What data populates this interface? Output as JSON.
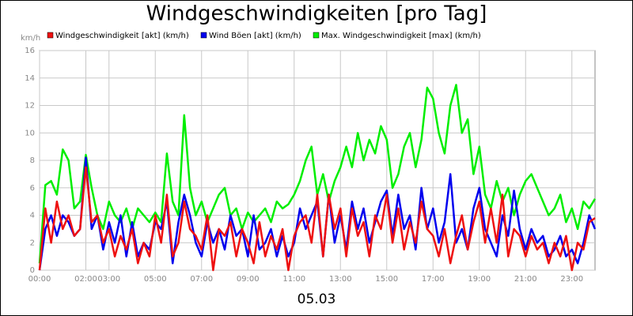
{
  "chart_data": {
    "type": "line",
    "title": "Windgeschwindigkeiten [pro Tag]",
    "x_label": "05.03",
    "y_unit": "km/h",
    "x": [
      0,
      0.25,
      0.5,
      0.75,
      1,
      1.25,
      1.5,
      1.75,
      2,
      2.25,
      2.5,
      2.75,
      3,
      3.25,
      3.5,
      3.75,
      4,
      4.25,
      4.5,
      4.75,
      5,
      5.25,
      5.5,
      5.75,
      6,
      6.25,
      6.5,
      6.75,
      7,
      7.25,
      7.5,
      7.75,
      8,
      8.25,
      8.5,
      8.75,
      9,
      9.25,
      9.5,
      9.75,
      10,
      10.25,
      10.5,
      10.75,
      11,
      11.25,
      11.5,
      11.75,
      12,
      12.25,
      12.5,
      12.75,
      13,
      13.25,
      13.5,
      13.75,
      14,
      14.25,
      14.5,
      14.75,
      15,
      15.25,
      15.5,
      15.75,
      16,
      16.25,
      16.5,
      16.75,
      17,
      17.25,
      17.5,
      17.75,
      18,
      18.25,
      18.5,
      18.75,
      19,
      19.25,
      19.5,
      19.75,
      20,
      20.25,
      20.5,
      20.75,
      21,
      21.25,
      21.5,
      21.75,
      22,
      22.25,
      22.5,
      22.75,
      23,
      23.25,
      23.5,
      23.75,
      24
    ],
    "series": [
      {
        "name": "Windgeschwindigkeit [akt] (km/h)",
        "color": "#ee1111",
        "values": [
          0.0,
          4.5,
          2.0,
          5.0,
          3.0,
          4.0,
          2.5,
          3.0,
          7.5,
          3.5,
          4.0,
          2.0,
          3.0,
          1.0,
          2.5,
          1.5,
          3.0,
          0.5,
          2.0,
          1.0,
          4.0,
          2.0,
          5.5,
          1.0,
          2.0,
          5.0,
          3.0,
          2.5,
          1.5,
          4.0,
          0.0,
          3.0,
          2.5,
          3.5,
          1.0,
          3.0,
          2.0,
          0.5,
          3.5,
          1.0,
          2.5,
          1.5,
          3.0,
          0.0,
          2.5,
          3.5,
          4.0,
          2.0,
          5.5,
          1.0,
          5.5,
          3.0,
          4.5,
          1.0,
          4.5,
          2.5,
          3.5,
          1.0,
          4.0,
          3.0,
          5.5,
          2.0,
          4.5,
          1.5,
          3.5,
          2.0,
          5.0,
          3.0,
          2.5,
          1.0,
          3.0,
          0.5,
          2.5,
          4.0,
          1.5,
          3.5,
          5.0,
          2.0,
          4.5,
          2.0,
          5.5,
          1.0,
          3.0,
          2.5,
          1.0,
          2.5,
          1.5,
          2.0,
          0.5,
          2.0,
          1.0,
          2.5,
          0.0,
          2.0,
          1.5,
          3.5,
          3.8
        ]
      },
      {
        "name": "Wind Böen [akt] (km/h)",
        "color": "#0000ee",
        "values": [
          0.0,
          3.0,
          4.0,
          2.5,
          4.0,
          3.5,
          2.5,
          3.0,
          8.2,
          3.0,
          4.0,
          1.5,
          3.5,
          2.0,
          4.0,
          1.0,
          3.5,
          1.0,
          2.0,
          1.5,
          3.5,
          3.0,
          5.0,
          0.5,
          3.5,
          5.5,
          4.0,
          2.0,
          1.0,
          3.5,
          2.0,
          3.0,
          1.5,
          4.0,
          2.5,
          3.0,
          1.0,
          4.0,
          1.5,
          2.0,
          3.0,
          1.0,
          2.5,
          1.0,
          2.0,
          4.5,
          3.0,
          4.0,
          5.0,
          1.0,
          5.5,
          2.0,
          4.0,
          1.5,
          5.0,
          3.0,
          4.5,
          2.0,
          3.5,
          5.0,
          5.8,
          2.5,
          5.5,
          3.0,
          4.0,
          1.5,
          6.0,
          3.0,
          4.5,
          2.0,
          3.5,
          7.0,
          2.0,
          3.0,
          1.5,
          4.5,
          6.0,
          3.0,
          2.0,
          1.0,
          4.0,
          2.5,
          5.8,
          3.0,
          1.5,
          3.0,
          2.0,
          2.5,
          1.0,
          1.5,
          2.5,
          1.0,
          1.5,
          0.5,
          2.0,
          4.0,
          3.0
        ]
      },
      {
        "name": "Max. Windgeschwindigkeit [max] (km/h)",
        "color": "#00ee00",
        "values": [
          0.5,
          6.2,
          6.5,
          5.5,
          8.8,
          8.0,
          4.5,
          5.0,
          8.4,
          6.0,
          4.0,
          3.0,
          5.0,
          4.0,
          3.5,
          4.5,
          3.0,
          4.5,
          4.0,
          3.5,
          4.2,
          3.5,
          8.5,
          5.0,
          4.0,
          11.3,
          6.0,
          4.0,
          5.0,
          3.5,
          4.5,
          5.5,
          6.0,
          4.0,
          4.5,
          3.0,
          4.2,
          3.5,
          4.0,
          4.5,
          3.5,
          5.0,
          4.5,
          4.8,
          5.5,
          6.5,
          8.0,
          9.0,
          5.5,
          7.0,
          5.0,
          6.5,
          7.5,
          9.0,
          7.5,
          10.0,
          8.0,
          9.5,
          8.5,
          10.5,
          9.5,
          6.0,
          7.0,
          9.0,
          10.0,
          7.5,
          9.5,
          13.3,
          12.5,
          10.0,
          8.5,
          12.0,
          13.5,
          10.0,
          11.0,
          7.0,
          9.0,
          5.5,
          4.5,
          6.5,
          5.0,
          6.0,
          4.0,
          5.5,
          6.5,
          7.0,
          6.0,
          5.0,
          4.0,
          4.5,
          5.5,
          3.5,
          4.5,
          3.0,
          5.0,
          4.5,
          5.2
        ]
      }
    ],
    "xlim": [
      0,
      24
    ],
    "xticks": [
      {
        "value": 0,
        "label": "00:00"
      },
      {
        "value": 2,
        "label": "02:00"
      },
      {
        "value": 3,
        "label": "03:00"
      },
      {
        "value": 5,
        "label": "05:00"
      },
      {
        "value": 7,
        "label": "07:00"
      },
      {
        "value": 9,
        "label": "09:00"
      },
      {
        "value": 11,
        "label": "11:00"
      },
      {
        "value": 13,
        "label": "13:00"
      },
      {
        "value": 15,
        "label": "15:00"
      },
      {
        "value": 17,
        "label": "17:00"
      },
      {
        "value": 19,
        "label": "19:00"
      },
      {
        "value": 21,
        "label": "21:00"
      },
      {
        "value": 23,
        "label": "23:00"
      }
    ],
    "ylim": [
      0,
      16
    ],
    "yticks": [
      0,
      2,
      4,
      6,
      8,
      10,
      12,
      14,
      16
    ],
    "grid": true
  }
}
